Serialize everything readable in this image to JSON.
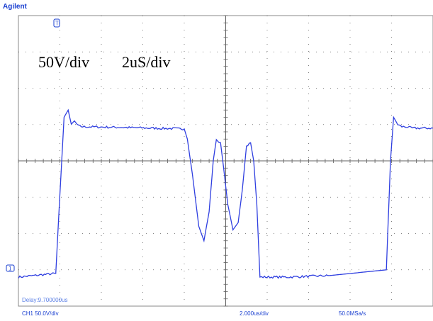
{
  "brand": "Agilent",
  "annotation": {
    "volts_per_div": "50V/div",
    "time_per_div": "2uS/div"
  },
  "status": {
    "channel_scale": "CH1 50.0V/div",
    "timebase": "2.000us/div",
    "sample_rate": "50.0MSa/s",
    "delay": "Delay:9.700000us"
  },
  "markers": {
    "trigger": "T",
    "ground": "1"
  },
  "colors": {
    "trace": "#2f3fe0",
    "graticule": "#606060",
    "brand": "#1a3fd0"
  },
  "chart_data": {
    "type": "line",
    "title": "",
    "xlabel": "",
    "ylabel": "",
    "x_divisions": 10,
    "y_divisions": 8,
    "xlim": [
      -10,
      10
    ],
    "ylim": [
      -200,
      200
    ],
    "series": [
      {
        "x": [
          -10,
          -8.2,
          -7.95,
          -7.8,
          -7.6,
          -7.45,
          -7.3,
          -7.1,
          -6.9,
          -5,
          -2.0,
          -1.85,
          -1.6,
          -1.3,
          -1.05,
          -0.8,
          -0.6,
          -0.45,
          -0.25,
          -0.1,
          0.1,
          0.35,
          0.6,
          0.8,
          1.0,
          1.2,
          1.35,
          1.5,
          1.65,
          1.8,
          3,
          5,
          7.75,
          7.95,
          8.1,
          8.3,
          8.5,
          8.7,
          9.0,
          10
        ],
        "y": [
          -160,
          -155,
          -20,
          60,
          70,
          50,
          55,
          48,
          47,
          46,
          44,
          30,
          -20,
          -90,
          -110,
          -70,
          0,
          30,
          25,
          -10,
          -60,
          -95,
          -85,
          -40,
          20,
          25,
          0,
          -60,
          -160,
          -160,
          -160,
          -158,
          -150,
          0,
          60,
          50,
          47,
          47,
          45,
          45
        ]
      }
    ]
  }
}
